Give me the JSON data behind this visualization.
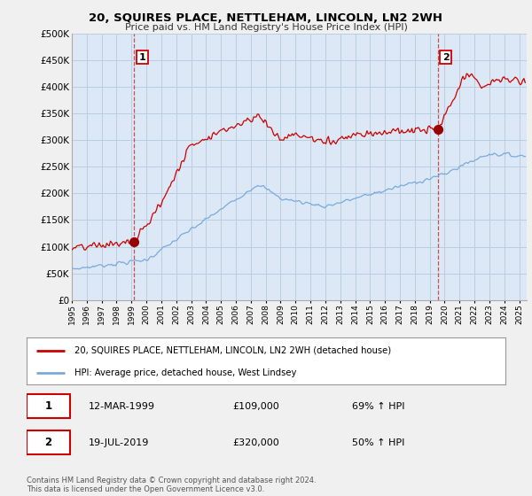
{
  "title": "20, SQUIRES PLACE, NETTLEHAM, LINCOLN, LN2 2WH",
  "subtitle": "Price paid vs. HM Land Registry's House Price Index (HPI)",
  "ylim": [
    0,
    500000
  ],
  "yticks": [
    0,
    50000,
    100000,
    150000,
    200000,
    250000,
    300000,
    350000,
    400000,
    450000,
    500000
  ],
  "ytick_labels": [
    "£0",
    "£50K",
    "£100K",
    "£150K",
    "£200K",
    "£250K",
    "£300K",
    "£350K",
    "£400K",
    "£450K",
    "£500K"
  ],
  "xlim_start": 1995.0,
  "xlim_end": 2025.5,
  "background_color": "#f0f0f0",
  "plot_background": "#dce8f5",
  "grid_color": "#b8cfe0",
  "sale1_x": 1999.19,
  "sale1_y": 109000,
  "sale2_x": 2019.54,
  "sale2_y": 320000,
  "red_line_color": "#cc0000",
  "blue_line_color": "#7aaadd",
  "marker_color": "#990000",
  "legend_line1": "20, SQUIRES PLACE, NETTLEHAM, LINCOLN, LN2 2WH (detached house)",
  "legend_line2": "HPI: Average price, detached house, West Lindsey",
  "annot1_date": "12-MAR-1999",
  "annot1_price": "£109,000",
  "annot1_hpi": "69% ↑ HPI",
  "annot2_date": "19-JUL-2019",
  "annot2_price": "£320,000",
  "annot2_hpi": "50% ↑ HPI",
  "footer": "Contains HM Land Registry data © Crown copyright and database right 2024.\nThis data is licensed under the Open Government Licence v3.0.",
  "dashed_line1_x": 1999.19,
  "dashed_line2_x": 2019.54
}
